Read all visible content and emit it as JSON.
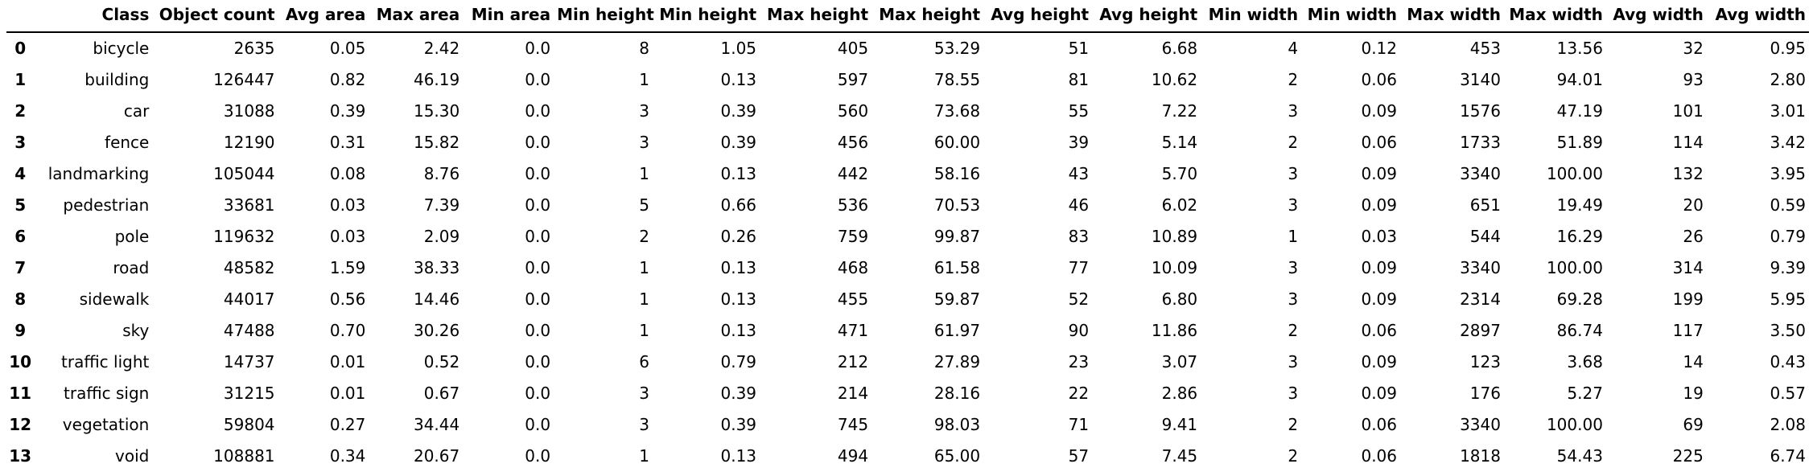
{
  "table": {
    "columns": [
      "",
      "Class",
      "Object count",
      "Avg area",
      "Max area",
      "Min area",
      "Min height",
      "Min height",
      "Max height",
      "Max height",
      "Avg height",
      "Avg height",
      "Min width",
      "Min width",
      "Max width",
      "Max width",
      "Avg width",
      "Avg width"
    ],
    "rows": [
      [
        "0",
        "bicycle",
        "2635",
        "0.05",
        "2.42",
        "0.0",
        "8",
        "1.05",
        "405",
        "53.29",
        "51",
        "6.68",
        "4",
        "0.12",
        "453",
        "13.56",
        "32",
        "0.95"
      ],
      [
        "1",
        "building",
        "126447",
        "0.82",
        "46.19",
        "0.0",
        "1",
        "0.13",
        "597",
        "78.55",
        "81",
        "10.62",
        "2",
        "0.06",
        "3140",
        "94.01",
        "93",
        "2.80"
      ],
      [
        "2",
        "car",
        "31088",
        "0.39",
        "15.30",
        "0.0",
        "3",
        "0.39",
        "560",
        "73.68",
        "55",
        "7.22",
        "3",
        "0.09",
        "1576",
        "47.19",
        "101",
        "3.01"
      ],
      [
        "3",
        "fence",
        "12190",
        "0.31",
        "15.82",
        "0.0",
        "3",
        "0.39",
        "456",
        "60.00",
        "39",
        "5.14",
        "2",
        "0.06",
        "1733",
        "51.89",
        "114",
        "3.42"
      ],
      [
        "4",
        "landmarking",
        "105044",
        "0.08",
        "8.76",
        "0.0",
        "1",
        "0.13",
        "442",
        "58.16",
        "43",
        "5.70",
        "3",
        "0.09",
        "3340",
        "100.00",
        "132",
        "3.95"
      ],
      [
        "5",
        "pedestrian",
        "33681",
        "0.03",
        "7.39",
        "0.0",
        "5",
        "0.66",
        "536",
        "70.53",
        "46",
        "6.02",
        "3",
        "0.09",
        "651",
        "19.49",
        "20",
        "0.59"
      ],
      [
        "6",
        "pole",
        "119632",
        "0.03",
        "2.09",
        "0.0",
        "2",
        "0.26",
        "759",
        "99.87",
        "83",
        "10.89",
        "1",
        "0.03",
        "544",
        "16.29",
        "26",
        "0.79"
      ],
      [
        "7",
        "road",
        "48582",
        "1.59",
        "38.33",
        "0.0",
        "1",
        "0.13",
        "468",
        "61.58",
        "77",
        "10.09",
        "3",
        "0.09",
        "3340",
        "100.00",
        "314",
        "9.39"
      ],
      [
        "8",
        "sidewalk",
        "44017",
        "0.56",
        "14.46",
        "0.0",
        "1",
        "0.13",
        "455",
        "59.87",
        "52",
        "6.80",
        "3",
        "0.09",
        "2314",
        "69.28",
        "199",
        "5.95"
      ],
      [
        "9",
        "sky",
        "47488",
        "0.70",
        "30.26",
        "0.0",
        "1",
        "0.13",
        "471",
        "61.97",
        "90",
        "11.86",
        "2",
        "0.06",
        "2897",
        "86.74",
        "117",
        "3.50"
      ],
      [
        "10",
        "traffic light",
        "14737",
        "0.01",
        "0.52",
        "0.0",
        "6",
        "0.79",
        "212",
        "27.89",
        "23",
        "3.07",
        "3",
        "0.09",
        "123",
        "3.68",
        "14",
        "0.43"
      ],
      [
        "11",
        "traffic sign",
        "31215",
        "0.01",
        "0.67",
        "0.0",
        "3",
        "0.39",
        "214",
        "28.16",
        "22",
        "2.86",
        "3",
        "0.09",
        "176",
        "5.27",
        "19",
        "0.57"
      ],
      [
        "12",
        "vegetation",
        "59804",
        "0.27",
        "34.44",
        "0.0",
        "3",
        "0.39",
        "745",
        "98.03",
        "71",
        "9.41",
        "2",
        "0.06",
        "3340",
        "100.00",
        "69",
        "2.08"
      ],
      [
        "13",
        "void",
        "108881",
        "0.34",
        "20.67",
        "0.0",
        "1",
        "0.13",
        "494",
        "65.00",
        "57",
        "7.45",
        "2",
        "0.06",
        "1818",
        "54.43",
        "225",
        "6.74"
      ]
    ]
  }
}
